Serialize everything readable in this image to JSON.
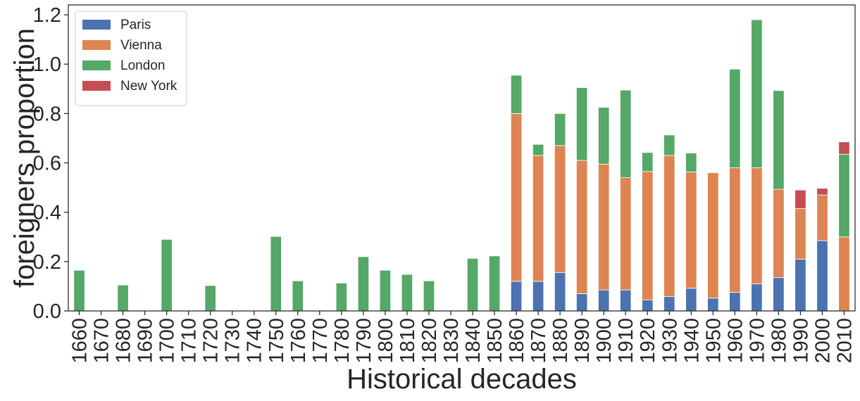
{
  "chart_data": {
    "type": "bar",
    "stacked": true,
    "xlabel": "Historical decades",
    "ylabel": "foreigners proportion",
    "ylim": [
      0,
      1.24
    ],
    "yticks": [
      "0.0",
      "0.2",
      "0.4",
      "0.6",
      "0.8",
      "1.0",
      "1.2"
    ],
    "grid": false,
    "legend_position": "top-left",
    "categories": [
      "1660",
      "1670",
      "1680",
      "1690",
      "1700",
      "1710",
      "1720",
      "1730",
      "1740",
      "1750",
      "1760",
      "1770",
      "1780",
      "1790",
      "1800",
      "1810",
      "1820",
      "1830",
      "1840",
      "1850",
      "1860",
      "1870",
      "1880",
      "1890",
      "1900",
      "1910",
      "1920",
      "1930",
      "1940",
      "1950",
      "1960",
      "1970",
      "1980",
      "1990",
      "2000",
      "2010"
    ],
    "series": [
      {
        "name": "Paris",
        "color": "#4c72b0",
        "values": [
          0,
          0,
          0,
          0,
          0,
          0,
          0,
          0,
          0,
          0,
          0,
          0,
          0,
          0,
          0,
          0,
          0,
          0,
          0,
          0,
          0.12,
          0.12,
          0.155,
          0.07,
          0.085,
          0.085,
          0.045,
          0.058,
          0.092,
          0.052,
          0.075,
          0.11,
          0.135,
          0.21,
          0.285,
          0
        ]
      },
      {
        "name": "Vienna",
        "color": "#dd8452",
        "values": [
          0,
          0,
          0,
          0,
          0,
          0,
          0,
          0,
          0,
          0,
          0,
          0,
          0,
          0,
          0,
          0,
          0,
          0,
          0,
          0,
          0.68,
          0.51,
          0.515,
          0.54,
          0.51,
          0.455,
          0.52,
          0.572,
          0.471,
          0.508,
          0.505,
          0.47,
          0.358,
          0.205,
          0.185,
          0.3
        ]
      },
      {
        "name": "London",
        "color": "#55a868",
        "values": [
          0.165,
          0,
          0.105,
          0,
          0.29,
          0,
          0.103,
          0,
          0,
          0.302,
          0.122,
          0,
          0.113,
          0.22,
          0.165,
          0.148,
          0.122,
          0,
          0.213,
          0.223,
          0.155,
          0.045,
          0.13,
          0.295,
          0.23,
          0.355,
          0.077,
          0.083,
          0.077,
          0,
          0.4,
          0.6,
          0.4,
          0,
          0,
          0.335
        ]
      },
      {
        "name": "New York",
        "color": "#c44e52",
        "values": [
          0,
          0,
          0,
          0,
          0,
          0,
          0,
          0,
          0,
          0,
          0,
          0,
          0,
          0,
          0,
          0,
          0,
          0,
          0,
          0,
          0,
          0,
          0,
          0,
          0,
          0,
          0,
          0,
          0,
          0,
          0,
          0,
          0,
          0.075,
          0.027,
          0.05
        ]
      }
    ]
  }
}
